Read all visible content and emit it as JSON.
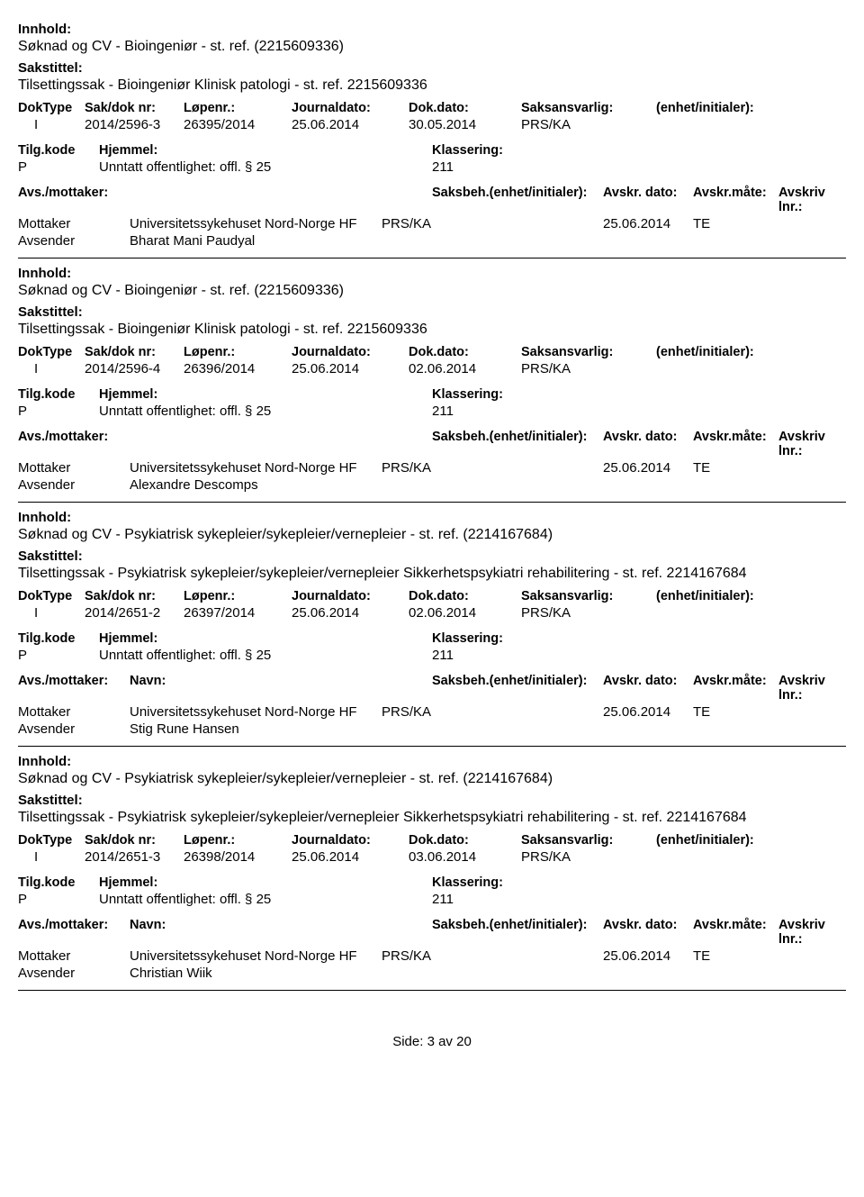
{
  "labels": {
    "innhold": "Innhold:",
    "sakstittel": "Sakstittel:",
    "doktype": "DokType",
    "sakdok": "Sak/dok nr:",
    "lopenr": "Løpenr.:",
    "journaldato": "Journaldato:",
    "dokdato": "Dok.dato:",
    "saksansvarlig": "Saksansvarlig:",
    "enhet_init": "(enhet/initialer):",
    "tilgkode": "Tilg.kode",
    "hjemmel": "Hjemmel:",
    "klassering": "Klassering:",
    "avsmottaker": "Avs./mottaker:",
    "navn": "Navn:",
    "saksbeh": "Saksbeh.",
    "saksbeh_enhet": "(enhet/initialer):",
    "avskr_dato": "Avskr. dato:",
    "avskr_maate": "Avskr.måte:",
    "avskriv_lnr": "Avskriv lnr.:",
    "mottaker": "Mottaker",
    "avsender": "Avsender"
  },
  "records": [
    {
      "innhold": "Søknad og CV - Bioingeniør - st. ref. (2215609336)",
      "sakstittel": "Tilsettingssak - Bioingeniør Klinisk patologi - st. ref. 2215609336",
      "doktype": "I",
      "sakdok": "2014/2596-3",
      "lopenr": "26395/2014",
      "journaldato": "25.06.2014",
      "dokdato": "30.05.2014",
      "saksansvarlig": "PRS/KA",
      "enhet_init": "",
      "tilgkode": "P",
      "hjemmel": "Unntatt offentlighet: offl. § 25",
      "klassering": "211",
      "show_navn_head": false,
      "mottaker_navn": "Universitetssykehuset Nord-Norge HF",
      "mottaker_saksbeh": "PRS/KA",
      "avskr_dato": "25.06.2014",
      "avskr_maate": "TE",
      "avsender_navn": "Bharat Mani Paudyal"
    },
    {
      "innhold": "Søknad og CV - Bioingeniør - st. ref. (2215609336)",
      "sakstittel": "Tilsettingssak - Bioingeniør Klinisk patologi - st. ref. 2215609336",
      "doktype": "I",
      "sakdok": "2014/2596-4",
      "lopenr": "26396/2014",
      "journaldato": "25.06.2014",
      "dokdato": "02.06.2014",
      "saksansvarlig": "PRS/KA",
      "enhet_init": "",
      "tilgkode": "P",
      "hjemmel": "Unntatt offentlighet: offl. § 25",
      "klassering": "211",
      "show_navn_head": false,
      "mottaker_navn": "Universitetssykehuset Nord-Norge HF",
      "mottaker_saksbeh": "PRS/KA",
      "avskr_dato": "25.06.2014",
      "avskr_maate": "TE",
      "avsender_navn": "Alexandre Descomps"
    },
    {
      "innhold": "Søknad og CV - Psykiatrisk sykepleier/sykepleier/vernepleier - st. ref. (2214167684)",
      "sakstittel": "Tilsettingssak - Psykiatrisk sykepleier/sykepleier/vernepleier Sikkerhetspsykiatri rehabilitering - st. ref. 2214167684",
      "doktype": "I",
      "sakdok": "2014/2651-2",
      "lopenr": "26397/2014",
      "journaldato": "25.06.2014",
      "dokdato": "02.06.2014",
      "saksansvarlig": "PRS/KA",
      "enhet_init": "",
      "tilgkode": "P",
      "hjemmel": "Unntatt offentlighet: offl. § 25",
      "klassering": "211",
      "show_navn_head": true,
      "mottaker_navn": "Universitetssykehuset Nord-Norge HF",
      "mottaker_saksbeh": "PRS/KA",
      "avskr_dato": "25.06.2014",
      "avskr_maate": "TE",
      "avsender_navn": "Stig Rune Hansen"
    },
    {
      "innhold": "Søknad og CV - Psykiatrisk sykepleier/sykepleier/vernepleier - st. ref. (2214167684)",
      "sakstittel": "Tilsettingssak - Psykiatrisk sykepleier/sykepleier/vernepleier Sikkerhetspsykiatri rehabilitering - st. ref. 2214167684",
      "doktype": "I",
      "sakdok": "2014/2651-3",
      "lopenr": "26398/2014",
      "journaldato": "25.06.2014",
      "dokdato": "03.06.2014",
      "saksansvarlig": "PRS/KA",
      "enhet_init": "",
      "tilgkode": "P",
      "hjemmel": "Unntatt offentlighet: offl. § 25",
      "klassering": "211",
      "show_navn_head": true,
      "mottaker_navn": "Universitetssykehuset Nord-Norge HF",
      "mottaker_saksbeh": "PRS/KA",
      "avskr_dato": "25.06.2014",
      "avskr_maate": "TE",
      "avsender_navn": "Christian Wiik"
    }
  ],
  "footer": "Side: 3 av 20"
}
